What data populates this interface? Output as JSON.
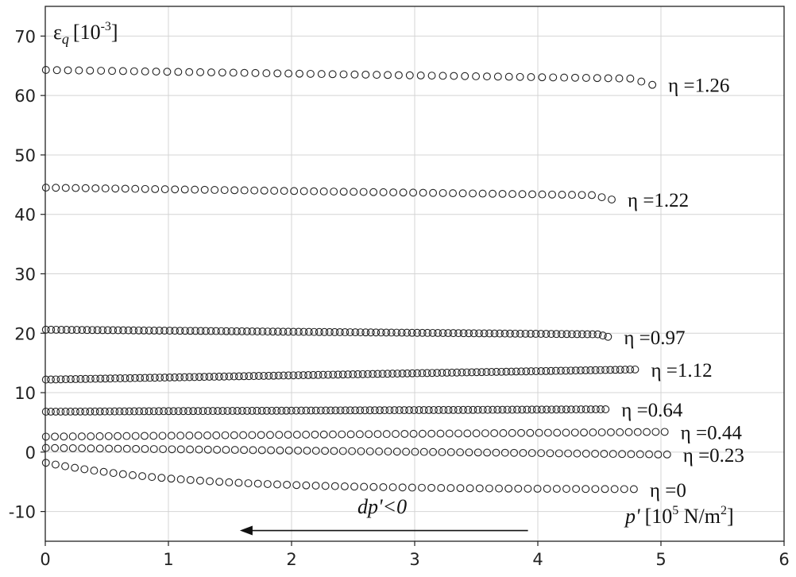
{
  "chart_data": {
    "type": "scatter",
    "xlabel": "p' [10⁵ N/m²]",
    "xlabel_parts": {
      "var": "p'",
      "text": "[10",
      "exp": "5",
      "unit": " N/m",
      "unit_exp": "2",
      "close": "]"
    },
    "ylabel": "εq [10⁻³]",
    "ylabel_parts": {
      "sym": "ε",
      "sub": "q",
      "text": "[10",
      "exp": "-3",
      "close": "]"
    },
    "xlim": [
      0,
      6
    ],
    "ylim": [
      -15,
      75
    ],
    "xticks": [
      "0",
      "1",
      "2",
      "3",
      "4",
      "5",
      "6"
    ],
    "yticks": [
      "-10",
      "0",
      "10",
      "20",
      "30",
      "40",
      "50",
      "60",
      "70"
    ],
    "grid": true,
    "marker": "open-circle",
    "annotation": {
      "text": "dp'<0",
      "arrow_from": [
        3.92,
        -13.2
      ],
      "arrow_to": [
        1.58,
        -13.2
      ]
    },
    "series": [
      {
        "name": "η =1.26",
        "x_end": 4.93,
        "y_start": 64.3,
        "y_end": 62.8,
        "y_last": 61.8,
        "count": 56,
        "curve": "lin",
        "label": "η =1.26"
      },
      {
        "name": "η =1.22",
        "x_end": 4.6,
        "y_start": 44.5,
        "y_end": 43.2,
        "y_last": 42.5,
        "count": 58,
        "curve": "lin",
        "label": "η =1.22"
      },
      {
        "name": "η =0.97",
        "x_end": 4.57,
        "y_start": 20.6,
        "y_end": 19.8,
        "y_last": 19.4,
        "count": 110,
        "curve": "lin",
        "label": "η =0.97"
      },
      {
        "name": "η =1.12",
        "x_end": 4.79,
        "y_start": 12.2,
        "y_end": 13.9,
        "y_last": 13.9,
        "count": 120,
        "curve": "lin",
        "label": "η =1.12"
      },
      {
        "name": "η =0.64",
        "x_end": 4.55,
        "y_start": 6.8,
        "y_end": 7.2,
        "y_last": 7.2,
        "count": 115,
        "curve": "lin",
        "label": "η =0.64"
      },
      {
        "name": "η =0.44",
        "x_end": 5.03,
        "y_start": 2.6,
        "y_end": 3.4,
        "y_last": 3.4,
        "count": 70,
        "curve": "lin",
        "label": "η =0.44"
      },
      {
        "name": "η =0.23",
        "x_end": 5.05,
        "y_start": 0.7,
        "y_end": -0.4,
        "y_last": -0.4,
        "count": 70,
        "curve": "lin",
        "label": "η =0.23"
      },
      {
        "name": "η =0",
        "x_end": 4.78,
        "y_start": -1.8,
        "y_end": -6.3,
        "y_last": -6.3,
        "count": 62,
        "curve": "exp",
        "label": "η =0"
      }
    ]
  }
}
